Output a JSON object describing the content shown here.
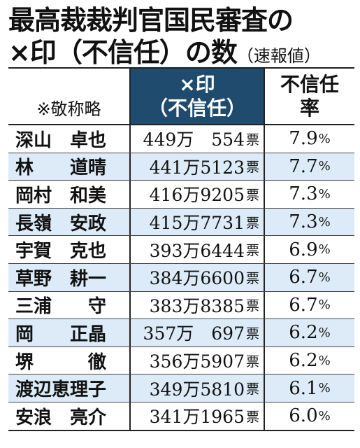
{
  "title": {
    "line1": "最高裁裁判官国民審査の",
    "line2": "×印（不信任）の数",
    "sub": "（速報値）"
  },
  "table": {
    "note": "※敬称略",
    "col_votes_line1": "×印",
    "col_votes_line2": "（不信任）",
    "col_rate_line1": "不信任",
    "col_rate_line2": "率",
    "vote_unit": "票",
    "pct_unit": "%",
    "rows": [
      {
        "name": "深山　卓也",
        "votes": "449万　554",
        "rate": "7.9"
      },
      {
        "name": "林　　道晴",
        "votes": "441万5123",
        "rate": "7.7"
      },
      {
        "name": "岡村　和美",
        "votes": "416万9205",
        "rate": "7.3"
      },
      {
        "name": "長嶺　安政",
        "votes": "415万7731",
        "rate": "7.3"
      },
      {
        "name": "宇賀　克也",
        "votes": "393万6444",
        "rate": "6.9"
      },
      {
        "name": "草野　耕一",
        "votes": "384万6600",
        "rate": "6.7"
      },
      {
        "name": "三浦　　守",
        "votes": "383万8385",
        "rate": "6.7"
      },
      {
        "name": "岡　　正晶",
        "votes": "357万　697",
        "rate": "6.2"
      },
      {
        "name": "堺　　　徹",
        "votes": "356万5907",
        "rate": "6.2"
      },
      {
        "name": "渡辺恵理子",
        "votes": "349万5810",
        "rate": "6.1"
      },
      {
        "name": "安浪　亮介",
        "votes": "341万1965",
        "rate": "6.0"
      }
    ]
  },
  "colors": {
    "header_bg": "#1e4b6e",
    "alt_row_bg": "#dcebf7"
  }
}
